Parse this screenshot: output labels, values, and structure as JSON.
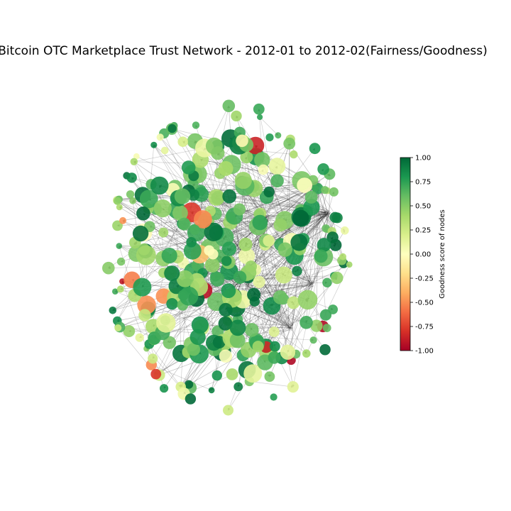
{
  "figure": {
    "title": "Bitcoin OTC Marketplace Trust Network - 2012-01 to 2012-02(Fairness/Goodness)"
  },
  "colorbar": {
    "label": "Goodness score of nodes",
    "min": -1.0,
    "max": 1.0,
    "ticks": [
      "-1.00",
      "-0.75",
      "-0.50",
      "-0.25",
      "0.00",
      "0.25",
      "0.50",
      "0.75",
      "1.00"
    ],
    "colormap": "RdYlGn",
    "stops": [
      "#a50026",
      "#d73027",
      "#f46d43",
      "#fdae61",
      "#fee08b",
      "#ffffbf",
      "#d9ef8b",
      "#a6d96a",
      "#66bd63",
      "#1a9850",
      "#006837"
    ]
  }
}
